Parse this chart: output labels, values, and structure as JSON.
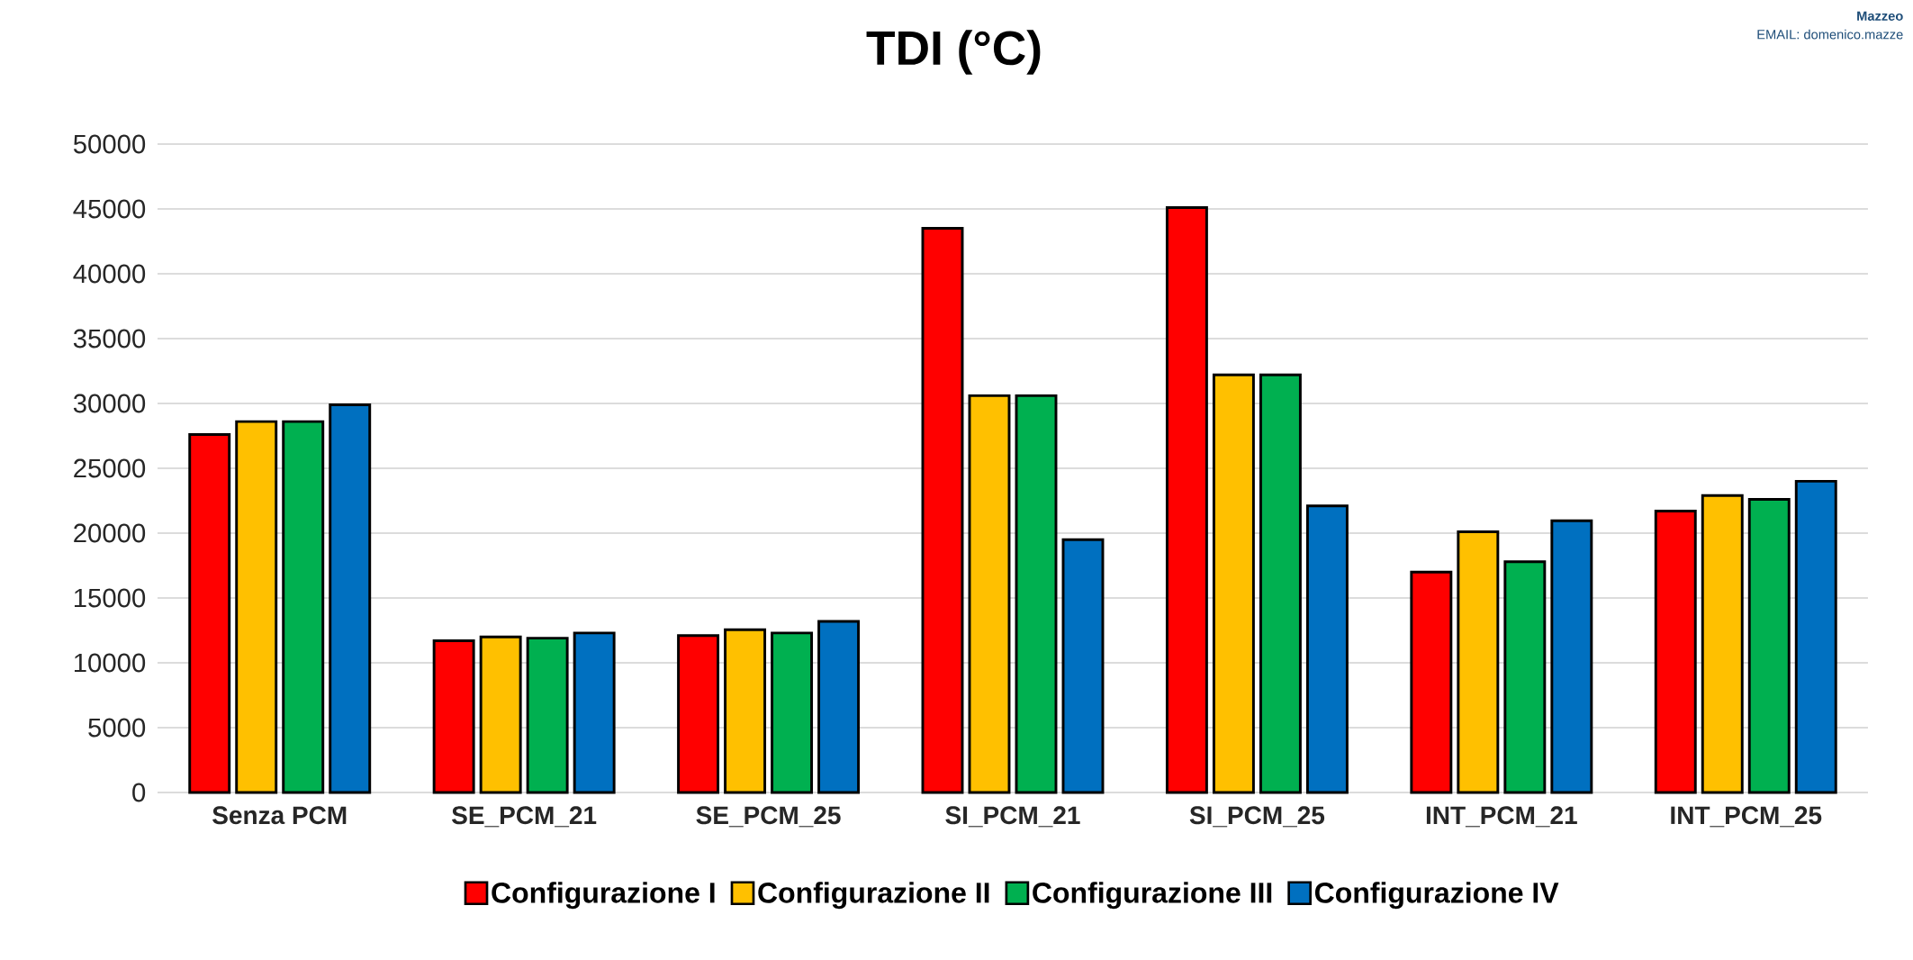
{
  "chart_data": {
    "type": "bar",
    "title": "TDI (°C)",
    "categories": [
      "Senza PCM",
      "SE_PCM_21",
      "SE_PCM_25",
      "SI_PCM_21",
      "SI_PCM_25",
      "INT_PCM_21",
      "INT_PCM_25"
    ],
    "series": [
      {
        "name": "Configurazione I",
        "color": "#ff0000",
        "values": [
          27600,
          11700,
          12100,
          43500,
          45100,
          17000,
          21700
        ]
      },
      {
        "name": "Configurazione II",
        "color": "#ffc000",
        "values": [
          28600,
          12000,
          12550,
          30600,
          32200,
          20100,
          22900
        ]
      },
      {
        "name": "Configurazione III",
        "color": "#00b050",
        "values": [
          28600,
          11900,
          12300,
          30600,
          32200,
          17800,
          22600
        ]
      },
      {
        "name": "Configurazione IV",
        "color": "#0070c0",
        "values": [
          29900,
          12300,
          13200,
          19500,
          22100,
          20950,
          24000
        ]
      }
    ],
    "ylim": [
      0,
      50000
    ],
    "yticks": [
      0,
      5000,
      10000,
      15000,
      20000,
      25000,
      30000,
      35000,
      40000,
      45000,
      50000
    ],
    "grid": "y",
    "legend": "bottom",
    "annotations": [
      "Mazzeo",
      "EMAIL: domenico.mazze"
    ]
  }
}
